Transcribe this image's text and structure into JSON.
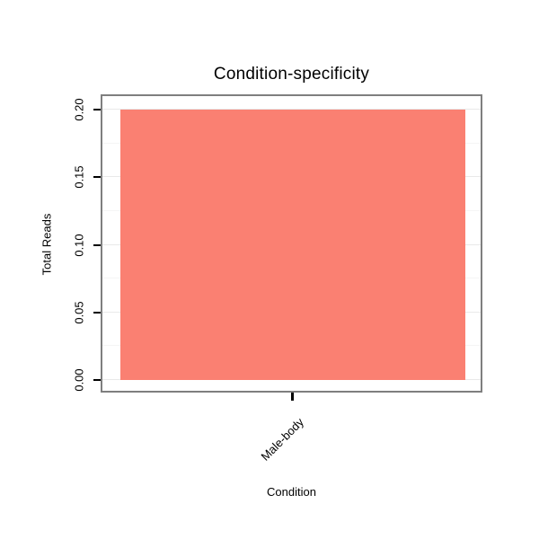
{
  "chart_data": {
    "type": "bar",
    "title": "Condition-specificity",
    "xlabel": "Condition",
    "ylabel": "Total Reads",
    "categories": [
      "Male-body"
    ],
    "values": [
      0.2
    ],
    "ylim": [
      0,
      0.2
    ],
    "ytick_labels": [
      "0.00",
      "0.05",
      "0.10",
      "0.15",
      "0.20"
    ],
    "ytick_values": [
      0.0,
      0.05,
      0.1,
      0.15,
      0.2
    ],
    "bar_color": "#fa8072",
    "legend": "none",
    "grid": "horizontal-light"
  }
}
